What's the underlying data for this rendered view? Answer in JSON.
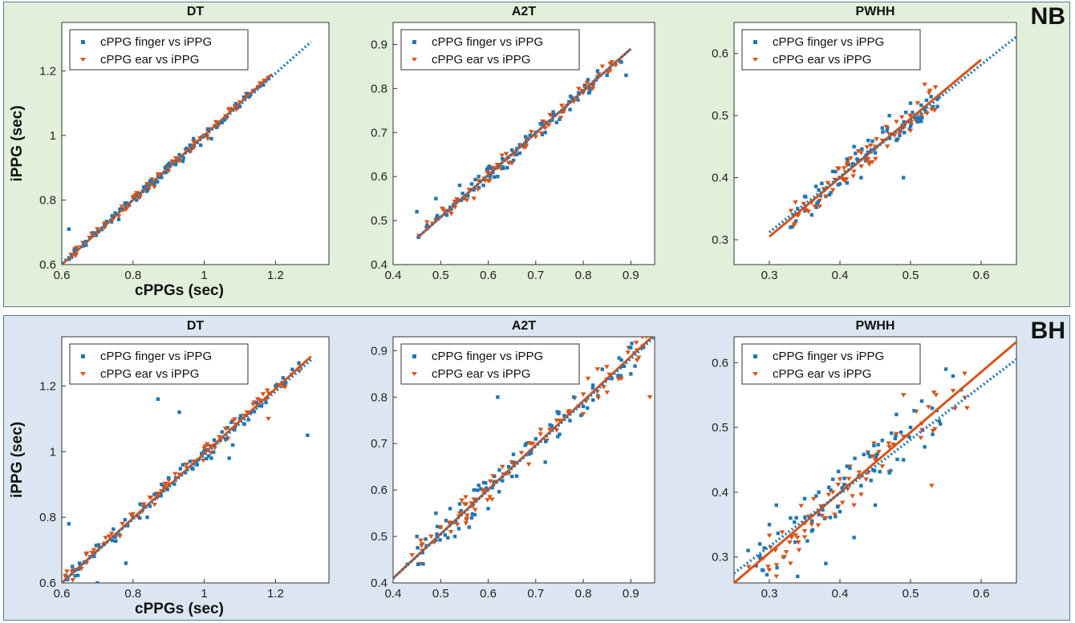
{
  "colors": {
    "finger": "#1f77b4",
    "ear": "#d95319",
    "panel_nb_bg": "#e2efda",
    "panel_bh_bg": "#dce6f2"
  },
  "panels": [
    {
      "label": "NB"
    },
    {
      "label": "BH"
    }
  ],
  "chart_data": [
    {
      "type": "scatter",
      "panel": "NB",
      "title": "DT",
      "xlabel": "cPPGs (sec)",
      "ylabel": "iPPG (sec)",
      "xlim": [
        0.6,
        1.35
      ],
      "ylim": [
        0.6,
        1.35
      ],
      "xticks": [
        "0.6",
        "0.8",
        "1",
        "1.2"
      ],
      "yticks": [
        "0.6",
        "0.8",
        "1",
        "1.2"
      ],
      "legend": [
        "cPPG finger vs iPPG",
        "cPPG ear vs iPPG"
      ],
      "legend_position": "top-left",
      "fit_finger": {
        "x": [
          0.6,
          1.3
        ],
        "y": [
          0.605,
          1.29
        ]
      },
      "fit_ear": {
        "x": [
          0.6,
          1.19
        ],
        "y": [
          0.6,
          1.19
        ]
      },
      "spread": 0.012,
      "series": [
        {
          "name": "cPPG finger vs iPPG",
          "marker": "square",
          "x": [
            0.62,
            0.7,
            0.72,
            0.75,
            0.76,
            0.78,
            0.8,
            0.81,
            0.82,
            0.83,
            0.84,
            0.85,
            0.86,
            0.88,
            0.89,
            0.9,
            0.92,
            0.93,
            0.94,
            0.95,
            0.96,
            0.97,
            0.98,
            0.99,
            1.0,
            1.01,
            1.02,
            1.03,
            1.05,
            1.06,
            1.08,
            1.1,
            1.12,
            1.14,
            1.15,
            1.18
          ],
          "y": [
            0.71,
            0.7,
            0.72,
            0.76,
            0.74,
            0.79,
            0.81,
            0.8,
            0.82,
            0.84,
            0.83,
            0.86,
            0.85,
            0.87,
            0.9,
            0.91,
            0.91,
            0.94,
            0.92,
            0.96,
            0.97,
            0.99,
            0.98,
            0.97,
            1.0,
            1.02,
            0.99,
            1.03,
            1.04,
            1.06,
            1.08,
            1.09,
            1.13,
            1.14,
            1.15,
            1.18
          ]
        },
        {
          "name": "cPPG ear vs iPPG",
          "marker": "triangle",
          "x": [
            0.7,
            0.73,
            0.76,
            0.78,
            0.8,
            0.82,
            0.84,
            0.86,
            0.87,
            0.88,
            0.9,
            0.91,
            0.92,
            0.93,
            0.95,
            0.96,
            0.97,
            0.98,
            1.0,
            1.01,
            1.03,
            1.04,
            1.06,
            1.09,
            1.12
          ],
          "y": [
            0.71,
            0.73,
            0.75,
            0.77,
            0.81,
            0.81,
            0.85,
            0.84,
            0.88,
            0.88,
            0.89,
            0.92,
            0.93,
            0.92,
            0.95,
            0.95,
            0.98,
            0.98,
            1.0,
            0.99,
            1.03,
            1.03,
            1.06,
            1.08,
            1.12
          ]
        }
      ]
    },
    {
      "type": "scatter",
      "panel": "NB",
      "title": "A2T",
      "xlabel": "",
      "ylabel": "",
      "xlim": [
        0.4,
        0.95
      ],
      "ylim": [
        0.4,
        0.95
      ],
      "xticks": [
        "0.4",
        "0.5",
        "0.6",
        "0.7",
        "0.8",
        "0.9"
      ],
      "yticks": [
        "0.4",
        "0.5",
        "0.6",
        "0.7",
        "0.8",
        "0.9"
      ],
      "legend": [
        "cPPG finger vs iPPG",
        "cPPG ear vs iPPG"
      ],
      "legend_position": "top-left",
      "fit_finger": {
        "x": [
          0.45,
          0.9
        ],
        "y": [
          0.46,
          0.89
        ]
      },
      "fit_ear": {
        "x": [
          0.45,
          0.9
        ],
        "y": [
          0.46,
          0.89
        ]
      },
      "spread": 0.018,
      "series": [
        {
          "name": "cPPG finger vs iPPG",
          "marker": "square",
          "x": [
            0.45,
            0.49,
            0.52,
            0.54,
            0.55,
            0.57,
            0.58,
            0.59,
            0.6,
            0.61,
            0.62,
            0.63,
            0.64,
            0.65,
            0.66,
            0.67,
            0.68,
            0.7,
            0.71,
            0.72,
            0.74,
            0.75,
            0.77,
            0.79,
            0.81,
            0.83,
            0.85,
            0.88,
            0.89
          ],
          "y": [
            0.52,
            0.55,
            0.53,
            0.58,
            0.55,
            0.57,
            0.6,
            0.58,
            0.62,
            0.61,
            0.6,
            0.64,
            0.62,
            0.66,
            0.65,
            0.67,
            0.68,
            0.7,
            0.72,
            0.7,
            0.74,
            0.73,
            0.77,
            0.79,
            0.82,
            0.84,
            0.83,
            0.86,
            0.83
          ]
        },
        {
          "name": "cPPG ear vs iPPG",
          "marker": "triangle",
          "x": [
            0.49,
            0.51,
            0.53,
            0.55,
            0.56,
            0.57,
            0.58,
            0.6,
            0.61,
            0.62,
            0.64,
            0.65,
            0.67,
            0.68,
            0.7,
            0.72,
            0.73,
            0.76,
            0.78,
            0.8,
            0.82,
            0.84,
            0.86
          ],
          "y": [
            0.5,
            0.52,
            0.53,
            0.55,
            0.57,
            0.55,
            0.59,
            0.59,
            0.62,
            0.62,
            0.64,
            0.63,
            0.67,
            0.67,
            0.69,
            0.71,
            0.74,
            0.75,
            0.77,
            0.79,
            0.8,
            0.85,
            0.86
          ]
        }
      ]
    },
    {
      "type": "scatter",
      "panel": "NB",
      "title": "PWHH",
      "xlabel": "",
      "ylabel": "",
      "xlim": [
        0.25,
        0.65
      ],
      "ylim": [
        0.26,
        0.65
      ],
      "xticks": [
        "0.3",
        "0.4",
        "0.5",
        "0.6"
      ],
      "yticks": [
        "0.3",
        "0.4",
        "0.5",
        "0.6"
      ],
      "legend": [
        "cPPG finger vs iPPG",
        "cPPG ear vs iPPG"
      ],
      "legend_position": "top-left",
      "fit_finger": {
        "x": [
          0.3,
          0.65
        ],
        "y": [
          0.312,
          0.627
        ]
      },
      "fit_ear": {
        "x": [
          0.3,
          0.6
        ],
        "y": [
          0.305,
          0.59
        ]
      },
      "spread": 0.02,
      "series": [
        {
          "name": "cPPG finger vs iPPG",
          "marker": "square",
          "x": [
            0.33,
            0.34,
            0.35,
            0.36,
            0.37,
            0.38,
            0.39,
            0.4,
            0.41,
            0.42,
            0.43,
            0.44,
            0.45,
            0.46,
            0.47,
            0.48,
            0.49,
            0.5,
            0.51,
            0.52,
            0.54
          ],
          "y": [
            0.32,
            0.35,
            0.37,
            0.34,
            0.38,
            0.37,
            0.41,
            0.39,
            0.43,
            0.45,
            0.4,
            0.46,
            0.44,
            0.48,
            0.5,
            0.46,
            0.4,
            0.52,
            0.49,
            0.51,
            0.53
          ]
        },
        {
          "name": "cPPG ear vs iPPG",
          "marker": "triangle",
          "x": [
            0.35,
            0.36,
            0.38,
            0.39,
            0.4,
            0.41,
            0.42,
            0.43,
            0.44,
            0.45,
            0.46,
            0.47,
            0.48,
            0.49,
            0.5,
            0.51,
            0.52,
            0.53
          ],
          "y": [
            0.35,
            0.36,
            0.37,
            0.38,
            0.4,
            0.42,
            0.41,
            0.44,
            0.43,
            0.45,
            0.46,
            0.47,
            0.49,
            0.48,
            0.5,
            0.52,
            0.55,
            0.51
          ]
        }
      ]
    },
    {
      "type": "scatter",
      "panel": "BH",
      "title": "DT",
      "xlabel": "cPPGs (sec)",
      "ylabel": "iPPG (sec)",
      "xlim": [
        0.6,
        1.35
      ],
      "ylim": [
        0.6,
        1.35
      ],
      "xticks": [
        "0.6",
        "0.8",
        "1",
        "1.2"
      ],
      "yticks": [
        "0.6",
        "0.8",
        "1",
        "1.2"
      ],
      "legend": [
        "cPPG finger vs iPPG",
        "cPPG ear vs iPPG"
      ],
      "legend_position": "top-left",
      "fit_finger": {
        "x": [
          0.6,
          1.3
        ],
        "y": [
          0.6,
          1.28
        ]
      },
      "fit_ear": {
        "x": [
          0.6,
          1.3
        ],
        "y": [
          0.6,
          1.29
        ]
      },
      "spread": 0.022,
      "series": [
        {
          "name": "cPPG finger vs iPPG",
          "marker": "square",
          "x": [
            0.62,
            0.63,
            0.65,
            0.68,
            0.7,
            0.72,
            0.75,
            0.78,
            0.8,
            0.82,
            0.84,
            0.86,
            0.87,
            0.88,
            0.9,
            0.92,
            0.93,
            0.94,
            0.96,
            0.98,
            1.0,
            1.02,
            1.05,
            1.07,
            1.08,
            1.1,
            1.13,
            1.15,
            1.2,
            1.27,
            1.29
          ],
          "y": [
            0.78,
            0.65,
            0.66,
            0.68,
            0.6,
            0.72,
            0.74,
            0.66,
            0.8,
            0.84,
            0.8,
            0.87,
            1.16,
            0.9,
            0.92,
            0.92,
            1.12,
            0.96,
            0.97,
            0.96,
            1.0,
            0.98,
            1.06,
            0.98,
            1.02,
            1.1,
            1.12,
            1.14,
            1.2,
            1.26,
            1.05
          ]
        },
        {
          "name": "cPPG ear vs iPPG",
          "marker": "triangle",
          "x": [
            0.61,
            0.64,
            0.67,
            0.69,
            0.72,
            0.74,
            0.77,
            0.8,
            0.83,
            0.85,
            0.88,
            0.9,
            0.93,
            0.95,
            0.97,
            1.0,
            1.03,
            1.06,
            1.09,
            1.12,
            1.15,
            1.18,
            1.22,
            1.27
          ],
          "y": [
            0.62,
            0.64,
            0.69,
            0.7,
            0.72,
            0.75,
            0.78,
            0.81,
            0.84,
            0.86,
            0.88,
            0.9,
            0.93,
            0.96,
            0.97,
            1.01,
            1.02,
            1.07,
            1.08,
            1.12,
            1.16,
            1.1,
            1.2,
            1.26
          ]
        }
      ]
    },
    {
      "type": "scatter",
      "panel": "BH",
      "title": "A2T",
      "xlabel": "",
      "ylabel": "",
      "xlim": [
        0.4,
        0.95
      ],
      "ylim": [
        0.4,
        0.93
      ],
      "xticks": [
        "0.4",
        "0.5",
        "0.6",
        "0.7",
        "0.8",
        "0.9"
      ],
      "yticks": [
        "0.4",
        "0.5",
        "0.6",
        "0.7",
        "0.8",
        "0.9"
      ],
      "legend": [
        "cPPG finger vs iPPG",
        "cPPG ear vs iPPG"
      ],
      "legend_position": "top-left",
      "fit_finger": {
        "x": [
          0.4,
          0.95
        ],
        "y": [
          0.41,
          0.93
        ]
      },
      "fit_ear": {
        "x": [
          0.4,
          0.95
        ],
        "y": [
          0.41,
          0.935
        ]
      },
      "spread": 0.03,
      "series": [
        {
          "name": "cPPG finger vs iPPG",
          "marker": "square",
          "x": [
            0.43,
            0.45,
            0.47,
            0.49,
            0.5,
            0.52,
            0.53,
            0.54,
            0.56,
            0.57,
            0.58,
            0.6,
            0.62,
            0.63,
            0.65,
            0.66,
            0.68,
            0.69,
            0.7,
            0.72,
            0.73,
            0.75,
            0.76,
            0.78,
            0.8,
            0.82,
            0.84,
            0.86,
            0.88,
            0.9
          ],
          "y": [
            0.44,
            0.5,
            0.48,
            0.55,
            0.52,
            0.56,
            0.5,
            0.57,
            0.52,
            0.6,
            0.61,
            0.56,
            0.8,
            0.62,
            0.66,
            0.63,
            0.7,
            0.68,
            0.71,
            0.66,
            0.74,
            0.72,
            0.76,
            0.8,
            0.78,
            0.82,
            0.86,
            0.84,
            0.88,
            0.85
          ]
        },
        {
          "name": "cPPG ear vs iPPG",
          "marker": "triangle",
          "x": [
            0.44,
            0.46,
            0.48,
            0.5,
            0.52,
            0.54,
            0.55,
            0.57,
            0.59,
            0.61,
            0.63,
            0.65,
            0.67,
            0.69,
            0.71,
            0.73,
            0.75,
            0.77,
            0.79,
            0.81,
            0.83,
            0.85,
            0.88,
            0.94
          ],
          "y": [
            0.46,
            0.48,
            0.5,
            0.52,
            0.53,
            0.55,
            0.57,
            0.58,
            0.6,
            0.63,
            0.65,
            0.66,
            0.68,
            0.7,
            0.72,
            0.73,
            0.75,
            0.77,
            0.78,
            0.84,
            0.86,
            0.81,
            0.84,
            0.8
          ]
        }
      ]
    },
    {
      "type": "scatter",
      "panel": "BH",
      "title": "PWHH",
      "xlabel": "",
      "ylabel": "",
      "xlim": [
        0.25,
        0.65
      ],
      "ylim": [
        0.26,
        0.64
      ],
      "xticks": [
        "0.3",
        "0.4",
        "0.5",
        "0.6"
      ],
      "yticks": [
        "0.3",
        "0.4",
        "0.5",
        "0.6"
      ],
      "legend": [
        "cPPG finger vs iPPG",
        "cPPG ear vs iPPG"
      ],
      "legend_position": "top-left",
      "fit_finger": {
        "x": [
          0.25,
          0.65
        ],
        "y": [
          0.275,
          0.605
        ]
      },
      "fit_ear": {
        "x": [
          0.25,
          0.65
        ],
        "y": [
          0.26,
          0.632
        ]
      },
      "spread": 0.035,
      "series": [
        {
          "name": "cPPG finger vs iPPG",
          "marker": "square",
          "x": [
            0.27,
            0.29,
            0.3,
            0.31,
            0.32,
            0.33,
            0.34,
            0.35,
            0.36,
            0.37,
            0.38,
            0.39,
            0.4,
            0.41,
            0.42,
            0.43,
            0.44,
            0.45,
            0.46,
            0.47,
            0.48,
            0.49,
            0.5,
            0.52,
            0.55
          ],
          "y": [
            0.31,
            0.28,
            0.35,
            0.38,
            0.3,
            0.36,
            0.27,
            0.39,
            0.34,
            0.4,
            0.29,
            0.42,
            0.37,
            0.44,
            0.33,
            0.41,
            0.46,
            0.38,
            0.48,
            0.43,
            0.52,
            0.45,
            0.5,
            0.47,
            0.59
          ]
        },
        {
          "name": "cPPG ear vs iPPG",
          "marker": "triangle",
          "x": [
            0.3,
            0.31,
            0.32,
            0.33,
            0.34,
            0.35,
            0.36,
            0.37,
            0.38,
            0.39,
            0.4,
            0.41,
            0.42,
            0.44,
            0.45,
            0.46,
            0.47,
            0.48,
            0.49,
            0.53,
            0.58
          ],
          "y": [
            0.28,
            0.27,
            0.3,
            0.29,
            0.33,
            0.34,
            0.35,
            0.37,
            0.36,
            0.4,
            0.42,
            0.41,
            0.38,
            0.43,
            0.45,
            0.44,
            0.47,
            0.49,
            0.55,
            0.41,
            0.53
          ]
        }
      ]
    }
  ]
}
